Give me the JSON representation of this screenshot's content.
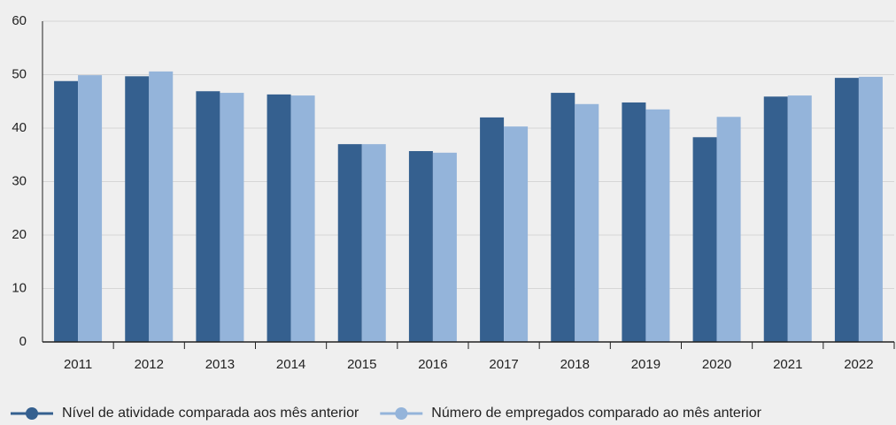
{
  "chart_data": {
    "type": "bar",
    "categories": [
      "2011",
      "2012",
      "2013",
      "2014",
      "2015",
      "2016",
      "2017",
      "2018",
      "2019",
      "2020",
      "2021",
      "2022"
    ],
    "series": [
      {
        "name": "Nível de atividade comparada aos mês anterior",
        "color": "#35608f",
        "values": [
          48.8,
          49.7,
          46.9,
          46.3,
          37.0,
          35.7,
          42.0,
          46.6,
          44.8,
          38.3,
          45.9,
          49.4
        ]
      },
      {
        "name": "Número de empregados comparado ao mês anterior",
        "color": "#94b4da",
        "values": [
          49.9,
          50.6,
          46.6,
          46.1,
          37.0,
          35.4,
          40.3,
          44.5,
          43.5,
          42.1,
          46.1,
          49.6
        ]
      }
    ],
    "ylim": [
      0,
      60
    ],
    "yticks": [
      0,
      10,
      20,
      30,
      40,
      50,
      60
    ],
    "grid": true,
    "legend": "bottom"
  }
}
